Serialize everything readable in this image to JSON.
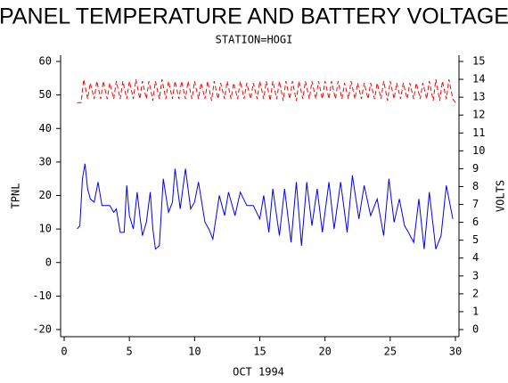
{
  "chart_data": {
    "type": "line",
    "title": "PANEL TEMPERATURE AND BATTERY VOLTAGE",
    "subtitle": "STATION=HOGI",
    "x_label": "OCT 1994",
    "xlim": [
      0,
      30
    ],
    "xticks": [
      0,
      5,
      10,
      15,
      20,
      25,
      30
    ],
    "ylim": [
      -20,
      60
    ],
    "yticks": [
      -20,
      -10,
      0,
      10,
      20,
      30,
      40,
      50,
      60
    ],
    "y2lim": [
      0,
      15
    ],
    "y2ticks": [
      0,
      1,
      2,
      3,
      4,
      5,
      6,
      7,
      8,
      9,
      10,
      11,
      12,
      13,
      14,
      15
    ],
    "series": [
      {
        "name": "TPNL",
        "color": "#0000ff",
        "dash": false,
        "x": [
          1.0,
          1.2,
          1.4,
          1.6,
          1.8,
          2.0,
          2.3,
          2.6,
          2.9,
          3.2,
          3.5,
          3.8,
          4.0,
          4.3,
          4.6,
          4.8,
          5.0,
          5.3,
          5.6,
          5.8,
          6.0,
          6.3,
          6.6,
          6.8,
          7.0,
          7.3,
          7.6,
          8.0,
          8.3,
          8.5,
          8.9,
          9.3,
          9.7,
          10.0,
          10.3,
          10.8,
          11.1,
          11.4,
          11.9,
          12.3,
          12.6,
          13.1,
          13.5,
          14.0,
          14.5,
          15.0,
          15.3,
          15.7,
          16.0,
          16.5,
          16.9,
          17.4,
          17.8,
          18.2,
          18.6,
          19.0,
          19.4,
          19.8,
          20.3,
          20.7,
          21.2,
          21.7,
          22.1,
          22.6,
          23.0,
          23.5,
          24.0,
          24.5,
          24.9,
          25.3,
          25.7,
          26.1,
          26.4,
          26.8,
          27.2,
          27.6,
          28.0,
          28.5,
          28.9,
          29.3,
          29.8
        ],
        "values": [
          10,
          11,
          25,
          29.5,
          22,
          19,
          18,
          24,
          17,
          17,
          17,
          15,
          16,
          9,
          9,
          23,
          14,
          10,
          21,
          14,
          8,
          12,
          21,
          10,
          4,
          5,
          25,
          15,
          18,
          28,
          16,
          28,
          16,
          18,
          24,
          12,
          10,
          7,
          20,
          14,
          21,
          14,
          21,
          17,
          17,
          13,
          20,
          9,
          22,
          8,
          22,
          6,
          24,
          5,
          24,
          11,
          22,
          9,
          24,
          10,
          24,
          9,
          26,
          13,
          23,
          14,
          19,
          8,
          25,
          12,
          19,
          11,
          9,
          6,
          19,
          4,
          21,
          4,
          8,
          23,
          13
        ]
      },
      {
        "name": "VOLTS",
        "color": "#ff0000",
        "dash": true,
        "axis": "y2",
        "x": [
          1.0,
          1.3,
          1.5,
          1.8,
          2.0,
          2.3,
          2.5,
          2.8,
          3.0,
          3.3,
          3.5,
          3.8,
          4.0,
          4.3,
          4.5,
          4.8,
          5.0,
          5.3,
          5.5,
          5.8,
          6.0,
          6.3,
          6.5,
          6.8,
          7.0,
          7.3,
          7.5,
          7.8,
          8.0,
          8.3,
          8.5,
          8.8,
          9.0,
          9.3,
          9.5,
          9.8,
          10.0,
          10.3,
          10.5,
          10.8,
          11.0,
          11.3,
          11.5,
          11.8,
          12.0,
          12.3,
          12.5,
          12.8,
          13.0,
          13.3,
          13.5,
          13.8,
          14.0,
          14.3,
          14.5,
          14.8,
          15.0,
          15.3,
          15.5,
          15.8,
          16.0,
          16.3,
          16.5,
          16.8,
          17.0,
          17.3,
          17.5,
          17.8,
          18.0,
          18.3,
          18.5,
          18.8,
          19.0,
          19.3,
          19.5,
          19.8,
          20.0,
          20.3,
          20.5,
          20.8,
          21.0,
          21.3,
          21.5,
          21.8,
          22.0,
          22.3,
          22.5,
          22.8,
          23.0,
          23.3,
          23.5,
          23.8,
          24.0,
          24.3,
          24.5,
          24.8,
          25.0,
          25.3,
          25.5,
          25.8,
          26.0,
          26.3,
          26.5,
          26.8,
          27.0,
          27.3,
          27.5,
          27.8,
          28.0,
          28.3,
          28.5,
          28.8,
          29.0,
          29.3,
          29.5,
          29.8,
          30.0
        ],
        "values": [
          12.7,
          12.7,
          14.0,
          12.9,
          13.8,
          12.9,
          13.9,
          12.9,
          13.9,
          12.9,
          13.8,
          12.9,
          13.9,
          12.9,
          13.9,
          12.9,
          13.9,
          12.9,
          14.0,
          12.9,
          13.9,
          12.9,
          13.9,
          12.8,
          13.9,
          12.9,
          14.0,
          12.9,
          13.9,
          12.9,
          13.9,
          12.9,
          13.9,
          12.9,
          13.9,
          12.9,
          13.9,
          12.9,
          13.8,
          12.9,
          13.9,
          12.8,
          13.9,
          12.9,
          13.8,
          12.9,
          13.9,
          12.9,
          13.8,
          12.9,
          13.9,
          12.9,
          13.8,
          12.9,
          13.8,
          12.9,
          13.9,
          12.9,
          13.9,
          12.8,
          13.9,
          12.9,
          13.9,
          12.8,
          13.9,
          12.9,
          13.9,
          12.8,
          13.9,
          12.9,
          13.9,
          12.9,
          13.9,
          12.9,
          13.9,
          12.9,
          13.9,
          12.9,
          13.9,
          12.9,
          13.9,
          12.9,
          13.8,
          12.9,
          13.9,
          12.9,
          13.8,
          12.9,
          13.8,
          12.9,
          13.8,
          12.9,
          13.8,
          12.9,
          13.9,
          12.8,
          13.9,
          12.9,
          13.8,
          12.9,
          13.8,
          12.9,
          13.8,
          12.9,
          13.8,
          12.9,
          13.8,
          12.9,
          13.9,
          12.8,
          14.0,
          12.8,
          13.9,
          12.9,
          14.0,
          12.9,
          12.7
        ]
      }
    ]
  }
}
